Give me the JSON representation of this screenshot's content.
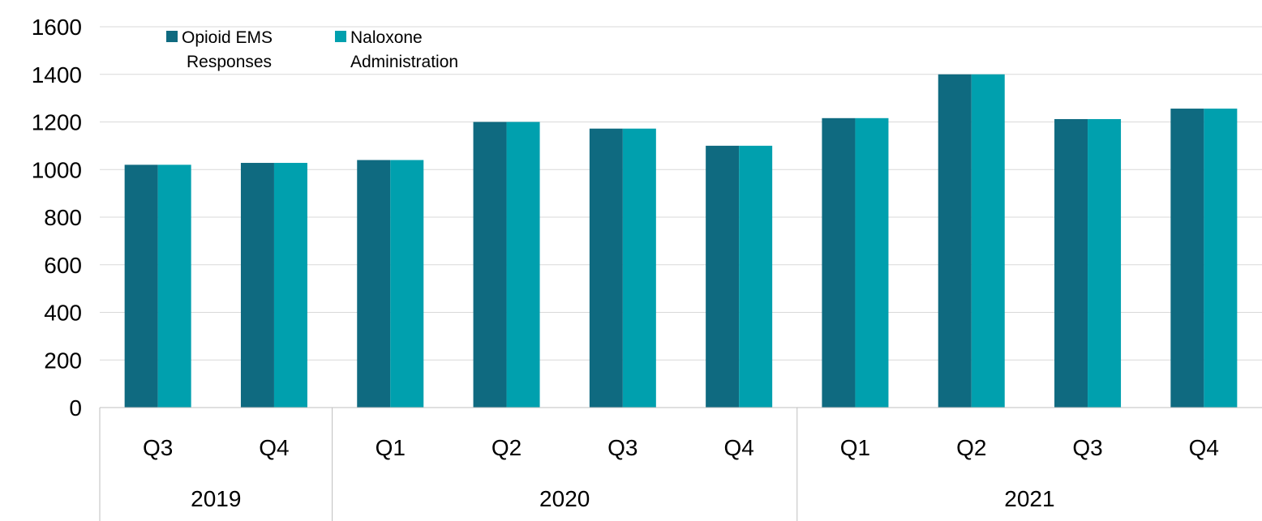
{
  "colors": {
    "series_1": "#0f6a80",
    "series_2": "#00a0ae",
    "gridline": "#d9d9d9",
    "axis": "#bfbfbf"
  },
  "chart_data": {
    "type": "bar",
    "title": "",
    "xlabel": "",
    "ylabel": "",
    "ylim": [
      0,
      1600
    ],
    "y_ticks": [
      "0",
      "200",
      "400",
      "600",
      "800",
      "1000",
      "1200",
      "1400",
      "1600"
    ],
    "grid": true,
    "legend_position": "top-left",
    "categories": [
      "Q3",
      "Q4",
      "Q1",
      "Q2",
      "Q3",
      "Q4",
      "Q1",
      "Q2",
      "Q3",
      "Q4"
    ],
    "groups": [
      {
        "label": "2019",
        "count": 2
      },
      {
        "label": "2020",
        "count": 4
      },
      {
        "label": "2021",
        "count": 4
      }
    ],
    "series": [
      {
        "name": "Opioid EMS Responses",
        "legend_lines": [
          "Opioid EMS",
          "Responses"
        ],
        "values": [
          1020,
          1028,
          1040,
          1200,
          1172,
          1100,
          1216,
          1400,
          1212,
          1256
        ]
      },
      {
        "name": "Naloxone Administration",
        "legend_lines": [
          "Naloxone",
          "Administration"
        ],
        "values": [
          1020,
          1028,
          1040,
          1200,
          1172,
          1100,
          1216,
          1400,
          1212,
          1256
        ]
      }
    ]
  }
}
